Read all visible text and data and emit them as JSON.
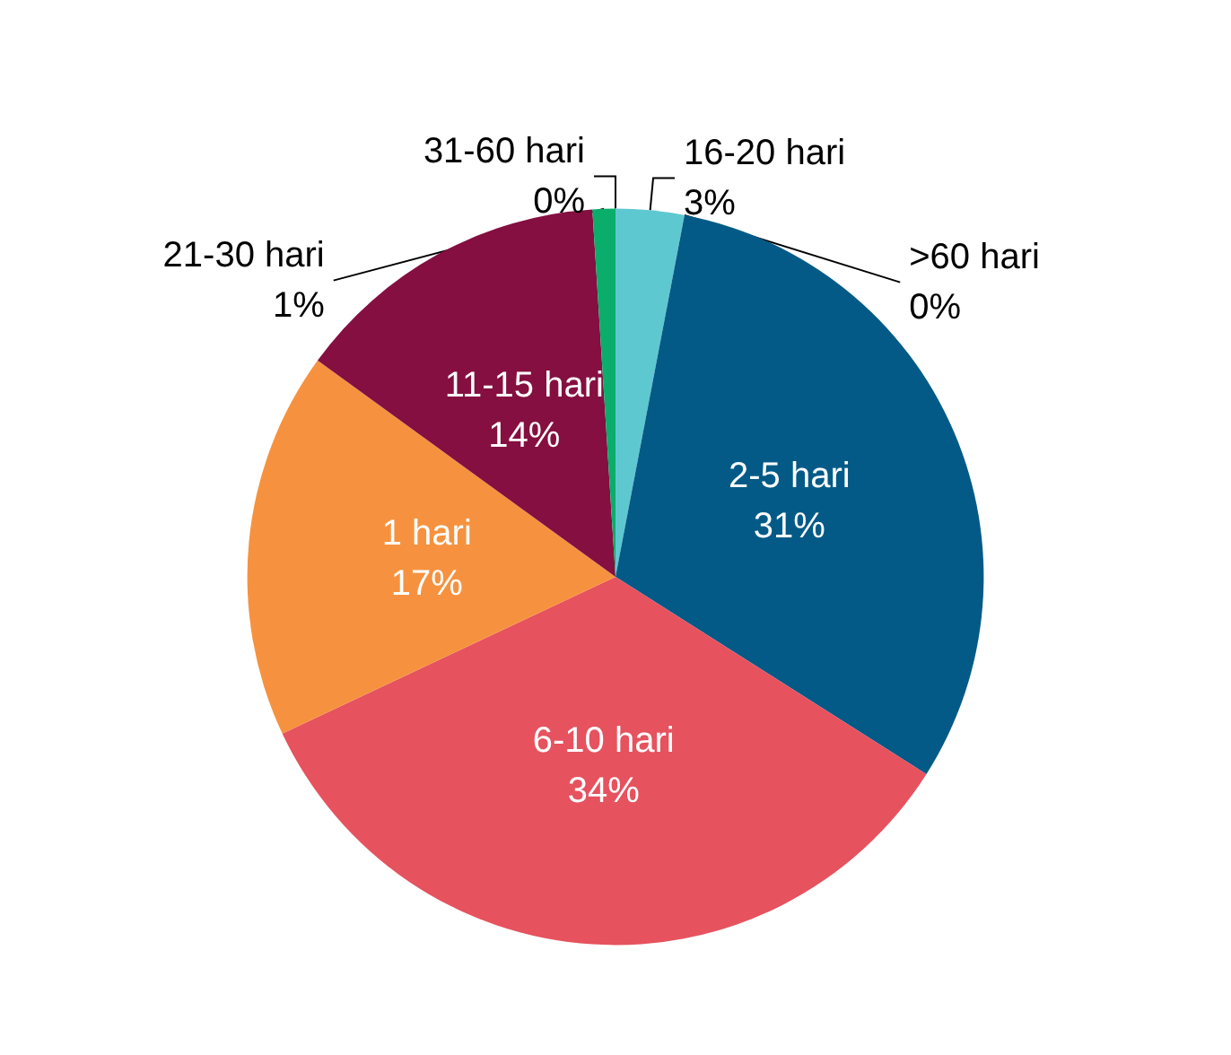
{
  "chart_data": {
    "type": "pie",
    "categories": [
      "31-60 hari",
      "16-20 hari",
      ">60 hari",
      "2-5 hari",
      "6-10 hari",
      "1 hari",
      "11-15 hari",
      "21-30 hari"
    ],
    "values": [
      0,
      3,
      0,
      31,
      34,
      17,
      14,
      1
    ],
    "colors": [
      "#9e9e9e",
      "#5ec8d0",
      "#bdbdbd",
      "#045a87",
      "#e6525e",
      "#f6923f",
      "#840f40",
      "#0aad6a"
    ],
    "value_labels": [
      "0%",
      "3%",
      "0%",
      "31%",
      "34%",
      "17%",
      "14%",
      "1%"
    ]
  }
}
